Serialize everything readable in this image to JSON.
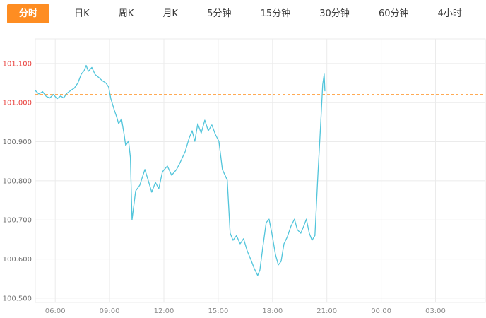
{
  "tabs": [
    {
      "label": "分时",
      "active": true
    },
    {
      "label": "日K",
      "active": false
    },
    {
      "label": "周K",
      "active": false
    },
    {
      "label": "月K",
      "active": false
    },
    {
      "label": "5分钟",
      "active": false
    },
    {
      "label": "15分钟",
      "active": false
    },
    {
      "label": "30分钟",
      "active": false
    },
    {
      "label": "60分钟",
      "active": false
    },
    {
      "label": "4小时",
      "active": false
    }
  ],
  "colors": {
    "active_tab_bg": "#fe8d22",
    "active_tab_text": "#ffffff",
    "tab_text": "#3a3a3a",
    "line": "#52c5db",
    "ref_line": "#ff9e3d",
    "grid": "#ebebeb",
    "x_label": "#8a8a8a"
  },
  "chart_data": {
    "type": "line",
    "title": "",
    "legend": "none",
    "grid": "on",
    "x_range_hours": [
      4.9,
      29.75
    ],
    "ylim": [
      100.489,
      101.163
    ],
    "reference_price": 101.021,
    "x_ticks": [
      {
        "hour": 6,
        "label": "06:00"
      },
      {
        "hour": 9,
        "label": "09:00"
      },
      {
        "hour": 12,
        "label": "12:00"
      },
      {
        "hour": 15,
        "label": "15:00"
      },
      {
        "hour": 18,
        "label": "18:00"
      },
      {
        "hour": 21,
        "label": "21:00"
      },
      {
        "hour": 24,
        "label": "00:00"
      },
      {
        "hour": 27,
        "label": "03:00"
      }
    ],
    "y_ticks": [
      {
        "value": 101.1,
        "label": "101.100",
        "color": "#e9413d"
      },
      {
        "value": 101.0,
        "label": "101.000",
        "color": "#e9413d"
      },
      {
        "value": 100.9,
        "label": "100.900",
        "color": "#707070"
      },
      {
        "value": 100.8,
        "label": "100.800",
        "color": "#707070"
      },
      {
        "value": 100.7,
        "label": "100.700",
        "color": "#707070"
      },
      {
        "value": 100.6,
        "label": "100.600",
        "color": "#707070"
      },
      {
        "value": 100.5,
        "label": "100.500",
        "color": "#707070"
      }
    ],
    "series": [
      {
        "name": "price",
        "points": [
          [
            4.9,
            101.031
          ],
          [
            5.1,
            101.022
          ],
          [
            5.3,
            101.028
          ],
          [
            5.5,
            101.016
          ],
          [
            5.7,
            101.012
          ],
          [
            5.9,
            101.021
          ],
          [
            6.1,
            101.01
          ],
          [
            6.3,
            101.017
          ],
          [
            6.46,
            101.012
          ],
          [
            6.65,
            101.024
          ],
          [
            6.85,
            101.031
          ],
          [
            7.05,
            101.037
          ],
          [
            7.25,
            101.05
          ],
          [
            7.44,
            101.073
          ],
          [
            7.6,
            101.082
          ],
          [
            7.71,
            101.095
          ],
          [
            7.83,
            101.08
          ],
          [
            8.02,
            101.09
          ],
          [
            8.2,
            101.072
          ],
          [
            8.41,
            101.064
          ],
          [
            8.6,
            101.056
          ],
          [
            8.8,
            101.05
          ],
          [
            8.95,
            101.04
          ],
          [
            9.07,
            101.01
          ],
          [
            9.27,
            100.98
          ],
          [
            9.4,
            100.962
          ],
          [
            9.5,
            100.946
          ],
          [
            9.66,
            100.958
          ],
          [
            9.8,
            100.92
          ],
          [
            9.89,
            100.89
          ],
          [
            10.05,
            100.902
          ],
          [
            10.15,
            100.86
          ],
          [
            10.24,
            100.7
          ],
          [
            10.44,
            100.774
          ],
          [
            10.67,
            100.789
          ],
          [
            10.95,
            100.829
          ],
          [
            11.14,
            100.8
          ],
          [
            11.33,
            100.771
          ],
          [
            11.53,
            100.796
          ],
          [
            11.72,
            100.78
          ],
          [
            11.92,
            100.823
          ],
          [
            12.19,
            100.838
          ],
          [
            12.43,
            100.814
          ],
          [
            12.7,
            100.829
          ],
          [
            12.89,
            100.846
          ],
          [
            13.17,
            100.874
          ],
          [
            13.4,
            100.91
          ],
          [
            13.56,
            100.928
          ],
          [
            13.71,
            100.901
          ],
          [
            13.87,
            100.946
          ],
          [
            14.06,
            100.922
          ],
          [
            14.26,
            100.955
          ],
          [
            14.45,
            100.928
          ],
          [
            14.65,
            100.943
          ],
          [
            14.84,
            100.919
          ],
          [
            15.04,
            100.901
          ],
          [
            15.23,
            100.829
          ],
          [
            15.5,
            100.802
          ],
          [
            15.66,
            100.666
          ],
          [
            15.82,
            100.648
          ],
          [
            16.01,
            100.66
          ],
          [
            16.21,
            100.639
          ],
          [
            16.4,
            100.652
          ],
          [
            16.6,
            100.621
          ],
          [
            16.79,
            100.6
          ],
          [
            16.99,
            100.576
          ],
          [
            17.18,
            100.558
          ],
          [
            17.3,
            100.572
          ],
          [
            17.46,
            100.63
          ],
          [
            17.65,
            100.693
          ],
          [
            17.81,
            100.702
          ],
          [
            17.96,
            100.666
          ],
          [
            18.16,
            100.612
          ],
          [
            18.32,
            100.585
          ],
          [
            18.47,
            100.594
          ],
          [
            18.63,
            100.639
          ],
          [
            18.82,
            100.657
          ],
          [
            19.02,
            100.684
          ],
          [
            19.21,
            100.702
          ],
          [
            19.37,
            100.675
          ],
          [
            19.56,
            100.666
          ],
          [
            19.72,
            100.684
          ],
          [
            19.87,
            100.702
          ],
          [
            20.03,
            100.666
          ],
          [
            20.18,
            100.648
          ],
          [
            20.34,
            100.66
          ],
          [
            20.5,
            100.811
          ],
          [
            20.65,
            100.937
          ],
          [
            20.77,
            101.046
          ],
          [
            20.85,
            101.073
          ],
          [
            20.89,
            101.03
          ]
        ]
      }
    ]
  }
}
